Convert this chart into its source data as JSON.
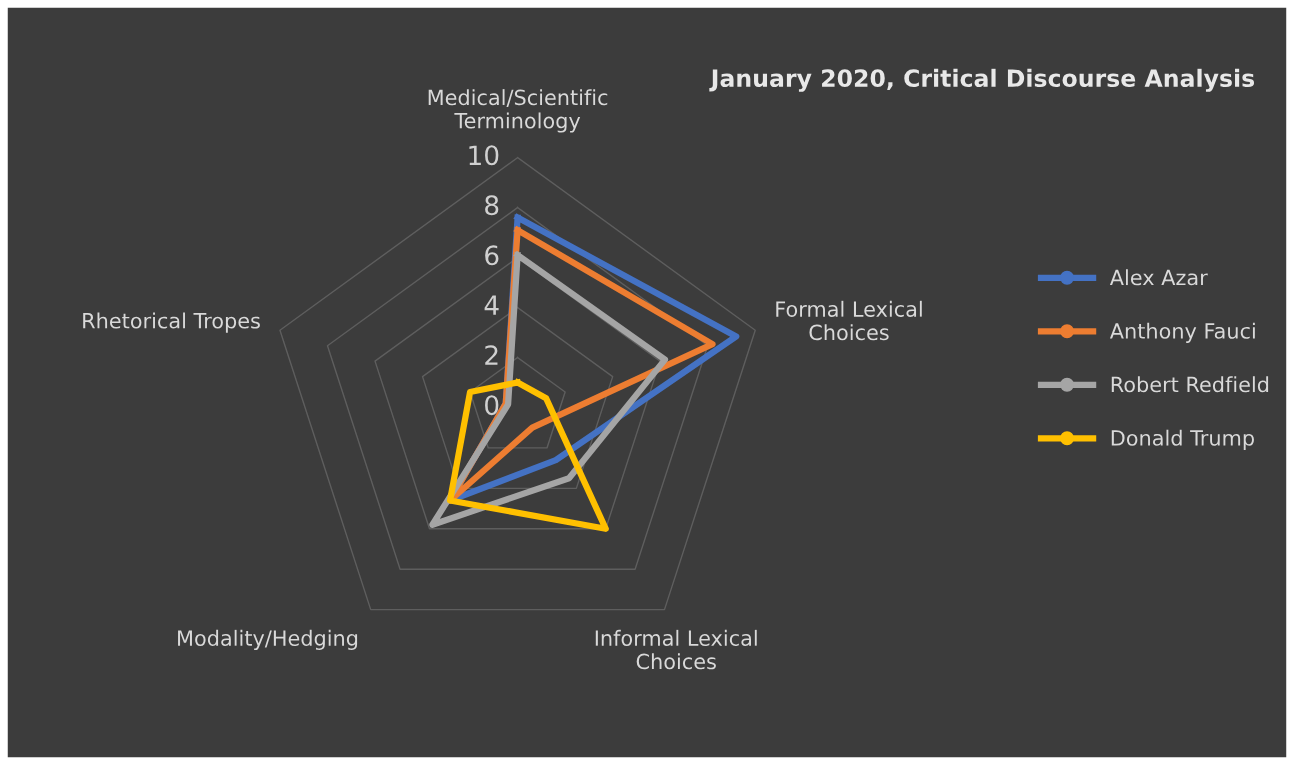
{
  "chart_data": {
    "type": "radar",
    "title": "January 2020, Critical Discourse Analysis",
    "categories": [
      "Medical/Scientific Terminology",
      "Formal Lexical Choices",
      "Informal Lexical Choices",
      "Modality/Hedging",
      "Rhetorical Tropes"
    ],
    "series": [
      {
        "name": "Alex Azar",
        "color": "#4472c4",
        "values": [
          7.6,
          9.2,
          2.6,
          4.6,
          0.5
        ]
      },
      {
        "name": "Anthony Fauci",
        "color": "#ed7d31",
        "values": [
          7.1,
          8.2,
          1.0,
          4.6,
          0.5
        ]
      },
      {
        "name": "Robert Redfield",
        "color": "#a5a5a5",
        "values": [
          6.1,
          6.2,
          3.5,
          5.8,
          0.4
        ]
      },
      {
        "name": "Donald Trump",
        "color": "#ffc000",
        "values": [
          1.0,
          1.2,
          6.0,
          4.6,
          2.0
        ]
      }
    ],
    "ylim": [
      0,
      10
    ],
    "yticks": [
      0,
      2,
      4,
      6,
      8,
      10
    ],
    "grid": true,
    "legend": "right",
    "marker": "none"
  }
}
